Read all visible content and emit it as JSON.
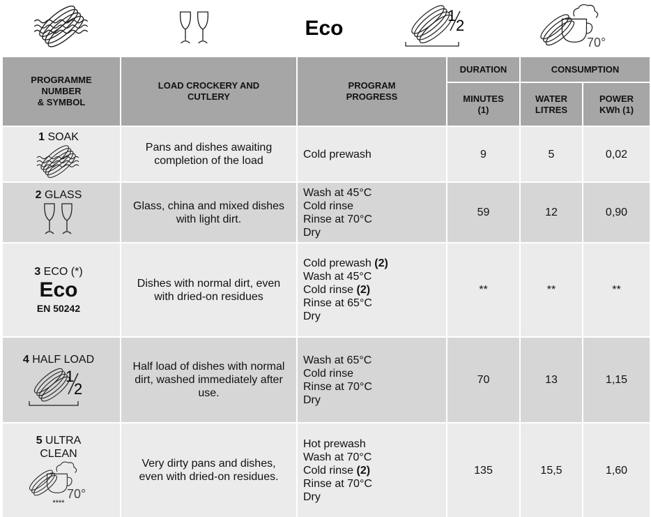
{
  "top_icons": {
    "eco": "Eco",
    "half_numerator": "1",
    "half_denominator": "2",
    "temperature": "70°"
  },
  "header": {
    "programme": [
      "PROGRAMME",
      "NUMBER",
      "& SYMBOL"
    ],
    "load": [
      "LOAD CROCKERY AND",
      "CUTLERY"
    ],
    "progress": [
      "PROGRAM",
      "PROGRESS"
    ],
    "duration": "DURATION",
    "consumption": "CONSUMPTION",
    "minutes": [
      "MINUTES",
      "(1)"
    ],
    "water": [
      "WATER",
      "LITRES"
    ],
    "power": [
      "POWER",
      "KWh (1)"
    ]
  },
  "rows": [
    {
      "number": "1",
      "name_lines": [
        "SOAK"
      ],
      "load": "Pans and dishes awaiting completion of the load",
      "progress": [
        {
          "text": "Cold prewash"
        }
      ],
      "minutes": "9",
      "water": "5",
      "power": "0,02"
    },
    {
      "number": "2",
      "name_lines": [
        "GLASS"
      ],
      "load": "Glass, china and mixed dishes with light dirt.",
      "progress": [
        {
          "text": "Wash at 45°C"
        },
        {
          "text": "Cold rinse"
        },
        {
          "text": "Rinse at 70°C"
        },
        {
          "text": "Dry"
        }
      ],
      "minutes": "59",
      "water": "12",
      "power": "0,90"
    },
    {
      "number": "3",
      "name_lines": [
        "ECO (*)"
      ],
      "symbol": "Eco",
      "standard": "EN 50242",
      "load": "Dishes with normal dirt, even with dried-on residues",
      "progress": [
        {
          "text": "Cold prewash",
          "note": "(2)"
        },
        {
          "text": "Wash at 45°C"
        },
        {
          "text": "Cold rinse",
          "note": "(2)"
        },
        {
          "text": "Rinse at 65°C"
        },
        {
          "text": "Dry"
        }
      ],
      "minutes": "**",
      "water": "**",
      "power": "**"
    },
    {
      "number": "4",
      "name_lines": [
        "HALF LOAD"
      ],
      "numerator": "1",
      "denominator": "2",
      "load": "Half load of dishes with normal dirt, washed immediately after use.",
      "progress": [
        {
          "text": "Wash at 65°C"
        },
        {
          "text": "Cold rinse"
        },
        {
          "text": "Rinse at 70°C"
        },
        {
          "text": "Dry"
        }
      ],
      "minutes": "70",
      "water": "13",
      "power": "1,15"
    },
    {
      "number": "5",
      "name_lines": [
        "ULTRA",
        "CLEAN"
      ],
      "temperature": "70°",
      "stars": "****",
      "load": "Very dirty pans and dishes, even with dried-on residues.",
      "progress": [
        {
          "text": "Hot prewash"
        },
        {
          "text": "Wash at 70°C"
        },
        {
          "text": "Cold rinse",
          "note": "(2)"
        },
        {
          "text": "Rinse at 70°C"
        },
        {
          "text": "Dry"
        }
      ],
      "minutes": "135",
      "water": "15,5",
      "power": "1,60"
    }
  ]
}
